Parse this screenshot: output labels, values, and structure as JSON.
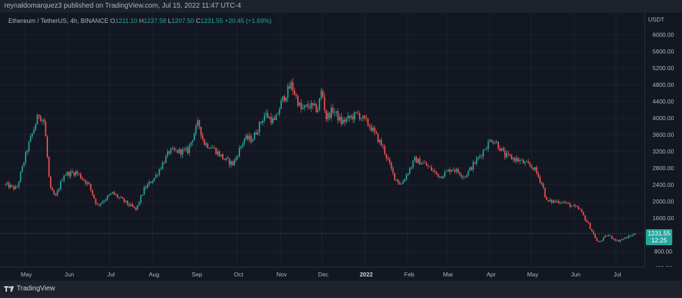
{
  "header": {
    "published_text": "reynaldomarquez3 published on TradingView.com, Jul 15, 2022 11:47 UTC-4"
  },
  "legend": {
    "symbol": "Ethereum / TetherUS, 4h, BINANCE",
    "o_label": "O",
    "o_value": "1211.10",
    "h_label": "H",
    "h_value": "1237.58",
    "l_label": "L",
    "l_value": "1207.50",
    "c_label": "C",
    "c_value": "1231.55",
    "change": "+20.45 (+1.69%)"
  },
  "price_box": {
    "price": "1231.55",
    "countdown": "12:25"
  },
  "footer": {
    "brand": "TradingView"
  },
  "colors": {
    "up": "#26a69a",
    "down": "#ef5350",
    "background": "#131722",
    "grid": "#1e222d",
    "axis_text": "#b2b5be"
  },
  "chart_data": {
    "type": "line",
    "title": "Ethereum / TetherUS, 4h, BINANCE",
    "ylabel": "USDT",
    "ylim": [
      400,
      6400
    ],
    "y_ticks": [
      "6000.00",
      "5600.00",
      "5200.00",
      "4800.00",
      "4400.00",
      "4000.00",
      "3600.00",
      "3200.00",
      "2800.00",
      "2400.00",
      "2000.00",
      "1600.00",
      "800.00",
      "400.00"
    ],
    "x_tick_labels": [
      "May",
      "Jun",
      "Jul",
      "Aug",
      "Sep",
      "Oct",
      "Nov",
      "Dec",
      "2022",
      "Feb",
      "Mar",
      "Apr",
      "May",
      "Jun",
      "Jul"
    ],
    "grid": true,
    "series": [
      {
        "x": [
          "2021-04-17",
          "2021-04-25",
          "2021-05-03",
          "2021-05-11",
          "2021-05-15",
          "2021-05-19",
          "2021-05-23",
          "2021-05-29",
          "2021-06-07",
          "2021-06-16",
          "2021-06-22",
          "2021-07-03",
          "2021-07-20",
          "2021-07-26",
          "2021-08-03",
          "2021-08-13",
          "2021-08-26",
          "2021-09-03",
          "2021-09-07",
          "2021-09-13",
          "2021-09-22",
          "2021-09-28",
          "2021-10-06",
          "2021-10-12",
          "2021-10-21",
          "2021-10-28",
          "2021-11-02",
          "2021-11-09",
          "2021-11-16",
          "2021-11-22",
          "2021-11-28",
          "2021-12-01",
          "2021-12-04",
          "2021-12-09",
          "2021-12-15",
          "2021-12-27",
          "2022-01-05",
          "2022-01-14",
          "2022-01-22",
          "2022-01-27",
          "2022-02-06",
          "2022-02-13",
          "2022-02-24",
          "2022-03-05",
          "2022-03-14",
          "2022-03-25",
          "2022-04-02",
          "2022-04-06",
          "2022-04-12",
          "2022-04-21",
          "2022-05-03",
          "2022-05-09",
          "2022-05-12",
          "2022-05-23",
          "2022-06-05",
          "2022-06-12",
          "2022-06-18",
          "2022-06-25",
          "2022-07-02",
          "2022-07-10",
          "2022-07-15"
        ],
        "y": [
          2400,
          2300,
          3300,
          4100,
          3900,
          2300,
          2100,
          2650,
          2700,
          2400,
          1900,
          2200,
          1800,
          2300,
          2600,
          3200,
          3200,
          3900,
          3400,
          3300,
          3000,
          2900,
          3500,
          3500,
          4100,
          3900,
          4400,
          4800,
          4200,
          4300,
          4200,
          4700,
          4000,
          4200,
          3900,
          4100,
          3800,
          3300,
          2600,
          2400,
          3000,
          2900,
          2600,
          2800,
          2600,
          3100,
          3500,
          3400,
          3100,
          3000,
          2800,
          2400,
          2000,
          2000,
          1800,
          1400,
          1000,
          1200,
          1050,
          1150,
          1231.55
        ]
      }
    ]
  }
}
